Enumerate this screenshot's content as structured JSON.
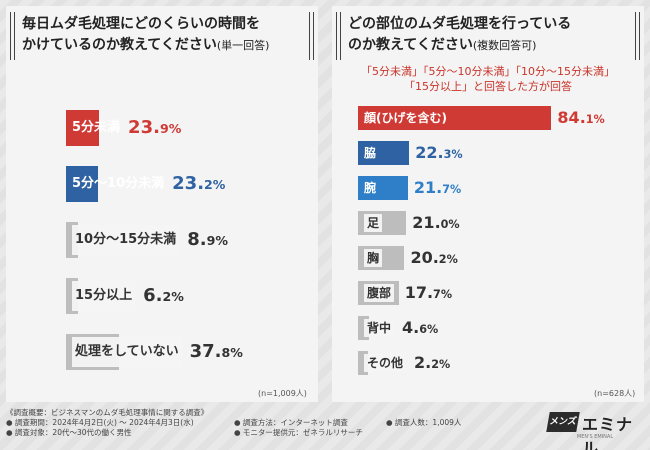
{
  "left": {
    "title_line1": "毎日ムダ毛処理にどのくらいの時間を",
    "title_line2": "かけているのか教えてください",
    "title_suffix": "(単一回答)",
    "n_note": "(n=1,009人)"
  },
  "right": {
    "title_line1": "どの部位のムダ毛処理を行っている",
    "title_line2": "のか教えてください",
    "title_suffix": "(複数回答可)",
    "condition_line1": "「5分未満」「5分〜10分未満」「10分〜15分未満」",
    "condition_line2": "「15分以上」と回答した方が回答",
    "n_note": "(n=628人)"
  },
  "chart_data": [
    {
      "type": "bar",
      "orientation": "horizontal",
      "title": "毎日ムダ毛処理にどのくらいの時間をかけているのか教えてください(単一回答)",
      "categories": [
        "5分未満",
        "5分〜10分未満",
        "10分〜15分未満",
        "15分以上",
        "処理をしていない"
      ],
      "values": [
        23.9,
        23.2,
        8.9,
        6.2,
        37.8
      ],
      "value_int": [
        "23.",
        "23.",
        "8.",
        "6.",
        "37."
      ],
      "value_dec": [
        "9%",
        "2%",
        "9%",
        "2%",
        "8%"
      ],
      "colors": [
        "#d03a35",
        "#2f62a2",
        "#bdbdbd",
        "#bdbdbd",
        "#bdbdbd"
      ],
      "value_colors": [
        "#d03a35",
        "#2f62a2",
        "#333333",
        "#333333",
        "#333333"
      ],
      "unit": "%",
      "n": "n=1,009人"
    },
    {
      "type": "bar",
      "orientation": "horizontal",
      "title": "どの部位のムダ毛処理を行っているのか教えてください(複数回答可)",
      "categories": [
        "顔(ひげを含む)",
        "脇",
        "腕",
        "足",
        "胸",
        "腹部",
        "背中",
        "その他"
      ],
      "values": [
        84.1,
        22.3,
        21.7,
        21.0,
        20.2,
        17.7,
        4.6,
        2.2
      ],
      "value_int": [
        "84.",
        "22.",
        "21.",
        "21.",
        "20.",
        "17.",
        "4.",
        "2."
      ],
      "value_dec": [
        "1%",
        "3%",
        "7%",
        "0%",
        "2%",
        "7%",
        "6%",
        "2%"
      ],
      "colors": [
        "#d03a35",
        "#2f62a2",
        "#2f7fc8",
        "#bdbdbd",
        "#bdbdbd",
        "#bdbdbd",
        "#bdbdbd",
        "#bdbdbd"
      ],
      "value_colors": [
        "#d03a35",
        "#2f62a2",
        "#2f7fc8",
        "#333333",
        "#333333",
        "#333333",
        "#333333",
        "#333333"
      ],
      "unit": "%",
      "n": "n=628人"
    }
  ],
  "footer": {
    "survey_summary": "《調査概要：ビジネスマンのムダ毛処理事情に関する調査》",
    "period": "● 調査期間：2024年4月2日(火) 〜 2024年4月3日(水)",
    "method": "● 調査方法：インターネット調査",
    "count": "● 調査人数：1,009人",
    "target": "● 調査対象：20代〜30代の働く男性",
    "monitor": "● モニター提供元：ゼネラルリサーチ"
  },
  "logo": {
    "badge": "メンズ",
    "name": "エミナル",
    "sub": "MEN'S EMINAL"
  }
}
